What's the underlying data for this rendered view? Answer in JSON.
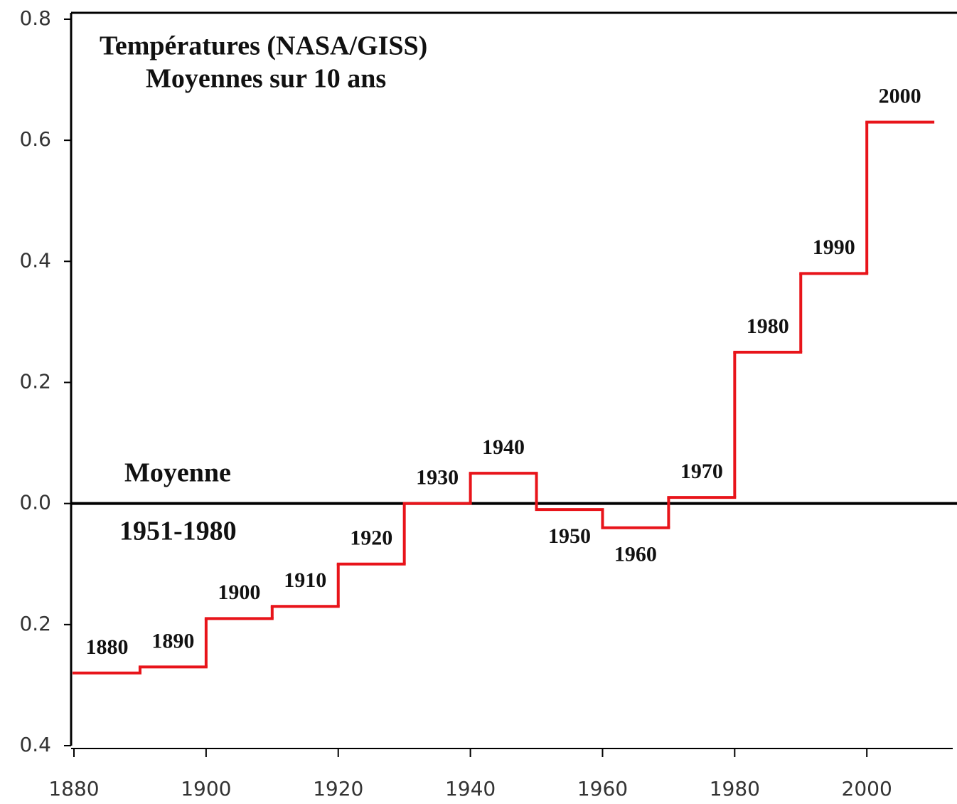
{
  "chart_data": {
    "type": "step",
    "title": "Températures (NASA/GISS)",
    "subtitle": "Moyennes sur 10 ans",
    "annotations": [
      "Moyenne",
      "1951-1980"
    ],
    "x": [
      1880,
      1890,
      1900,
      1910,
      1920,
      1930,
      1940,
      1950,
      1960,
      1970,
      1980,
      1990,
      2000
    ],
    "values": [
      -0.28,
      -0.27,
      -0.19,
      -0.17,
      -0.1,
      0.0,
      0.05,
      -0.01,
      -0.04,
      0.01,
      0.25,
      0.38,
      0.63
    ],
    "step_width": 10,
    "color": "#e8141a",
    "xlim": [
      1880,
      2013
    ],
    "xticks": [
      1880,
      1900,
      1920,
      1940,
      1960,
      1980,
      2000
    ],
    "ylim": [
      -0.4,
      0.8
    ],
    "yticks": [
      0.8,
      0.6,
      0.4,
      0.2,
      {
        "value": 0,
        "label": "0.0"
      },
      {
        "value": -0.2,
        "label": "0.2"
      },
      {
        "value": -0.4,
        "label": "0.4"
      }
    ]
  }
}
